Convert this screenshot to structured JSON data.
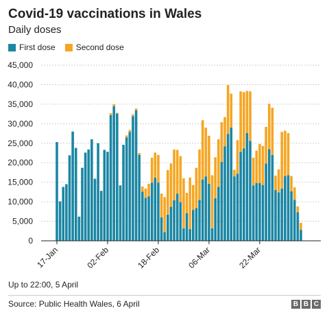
{
  "header": {
    "title": "Covid-19 vaccinations in Wales",
    "subtitle": "Daily doses"
  },
  "footer": {
    "note": "Up to 22:00, 5 April",
    "source": "Source: Public Health Wales, 6 April",
    "logo": [
      "B",
      "B",
      "C"
    ]
  },
  "colors": {
    "first_dose": "#1b86a3",
    "second_dose": "#f5a623",
    "grid": "#cfcfcf",
    "axis": "#222222"
  },
  "chart_data": {
    "type": "bar",
    "stacked": true,
    "legend": {
      "position": "top-left",
      "entries": [
        "First dose",
        "Second dose"
      ]
    },
    "ylim": [
      0,
      45000
    ],
    "yticks": [
      0,
      5000,
      10000,
      15000,
      20000,
      25000,
      30000,
      35000,
      40000,
      45000
    ],
    "ytick_labels": [
      "0",
      "5,000",
      "10,000",
      "15,000",
      "20,000",
      "25,000",
      "30,000",
      "35,000",
      "40,000",
      "45,000"
    ],
    "grid": true,
    "xtick_labels": [
      {
        "label": "17-Jan",
        "index": 0
      },
      {
        "label": "02-Feb",
        "index": 16
      },
      {
        "label": "18-Feb",
        "index": 32
      },
      {
        "label": "06-Mar",
        "index": 48
      },
      {
        "label": "22-Mar",
        "index": 64
      }
    ],
    "series": [
      {
        "name": "First dose",
        "values": [
          25300,
          10100,
          13800,
          14500,
          21900,
          28000,
          23800,
          6200,
          18700,
          22600,
          23400,
          26000,
          15900,
          25000,
          12800,
          23300,
          22800,
          32200,
          34500,
          32600,
          14200,
          24600,
          26500,
          27900,
          31900,
          33400,
          22000,
          12600,
          11000,
          11400,
          14900,
          16200,
          14900,
          6000,
          2200,
          6700,
          8700,
          10400,
          12100,
          9900,
          3200,
          7100,
          3000,
          7900,
          8400,
          10500,
          15700,
          16500,
          14600,
          3200,
          10900,
          13800,
          20200,
          24200,
          27400,
          29000,
          16500,
          17200,
          22800,
          23700,
          27600,
          25600,
          14200,
          14800,
          14800,
          14300,
          19800,
          23500,
          22000,
          13000,
          12400,
          13400,
          16600,
          16800,
          12700,
          10500,
          7300,
          2800
        ],
        "second": [
          0,
          0,
          0,
          0,
          0,
          0,
          0,
          0,
          0,
          0,
          0,
          0,
          0,
          0,
          0,
          0,
          0,
          500,
          500,
          200,
          0,
          0,
          500,
          500,
          500,
          500,
          500,
          1300,
          2400,
          3200,
          6400,
          6400,
          7100,
          6100,
          9000,
          11400,
          11100,
          13000,
          11200,
          11800,
          12800,
          5200,
          13200,
          6400,
          10300,
          12900,
          15200,
          12500,
          12300,
          13600,
          10500,
          12200,
          10200,
          7500,
          12500,
          8700,
          1700,
          8600,
          15500,
          14400,
          10800,
          12700,
          7100,
          8300,
          10000,
          10000,
          9400,
          11600,
          12100,
          3700,
          5900,
          14500,
          11600,
          10800,
          3900,
          3200,
          1500,
          1800
        ]
      }
    ]
  }
}
